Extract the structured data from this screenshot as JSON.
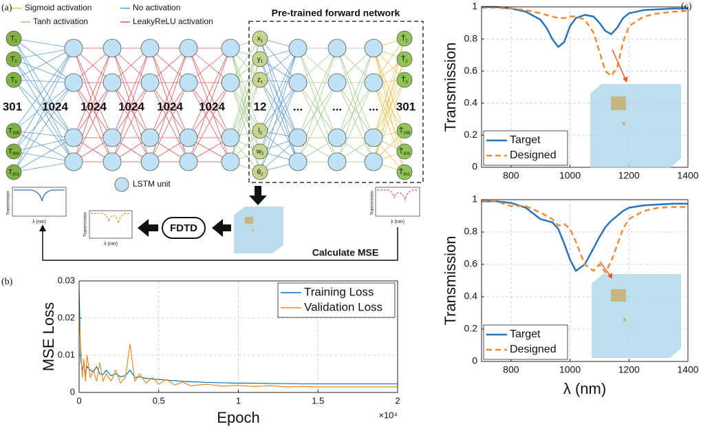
{
  "diagram": {
    "panel_label": "(a)",
    "legend": [
      {
        "name": "Sigmoid activation",
        "color": "#e9c14a"
      },
      {
        "name": "No activation",
        "color": "#5b9bd5"
      },
      {
        "name": "Tanh activation",
        "color": "#9fcb84"
      },
      {
        "name": "LeakyReLU activation",
        "color": "#e0535a"
      }
    ],
    "forward_title": "Pre-trained forward network",
    "layer_sizes": [
      "301",
      "1024",
      "1024",
      "1024",
      "1024",
      "1024",
      "12",
      "...",
      "...",
      "...",
      "301"
    ],
    "input_nodes": [
      {
        "main": "T",
        "sub": "1"
      },
      {
        "main": "T",
        "sub": "2"
      },
      {
        "main": "T",
        "sub": "3"
      },
      {
        "main": "T",
        "sub": "299"
      },
      {
        "main": "T",
        "sub": "300"
      },
      {
        "main": "T",
        "sub": "301"
      }
    ],
    "param_nodes": [
      {
        "main": "x",
        "sub": "1"
      },
      {
        "main": "y",
        "sub": "1"
      },
      {
        "main": "z",
        "sub": "1"
      },
      {
        "main": "l",
        "sub": "2"
      },
      {
        "main": "w",
        "sub": "2"
      },
      {
        "main": "θ",
        "sub": "2"
      }
    ],
    "output_nodes": [
      {
        "main": "T̂",
        "sub": "1"
      },
      {
        "main": "T̂",
        "sub": "2"
      },
      {
        "main": "T̂",
        "sub": "3"
      },
      {
        "main": "T̂",
        "sub": "299"
      },
      {
        "main": "T̂",
        "sub": "300"
      },
      {
        "main": "T̂",
        "sub": "301"
      }
    ],
    "lstm_label": "LSTM unit",
    "fdtd": "FDTD",
    "mse": "Calculate MSE",
    "thumb_axis": {
      "y": "Transmission",
      "x": "λ (nm)"
    }
  },
  "chart_data": [
    {
      "type": "line",
      "panel_label": "(b)",
      "xlabel": "Epoch",
      "ylabel": "MSE Loss",
      "x_multiplier": "×10⁴",
      "x": [
        0,
        100,
        200,
        300,
        400,
        500,
        700,
        900,
        1100,
        1300,
        1500,
        1700,
        2000,
        2300,
        2600,
        2900,
        3200,
        3500,
        3800,
        4200,
        4600,
        5000,
        5500,
        6000,
        6500,
        7000,
        8000,
        9000,
        10000,
        11000,
        12000,
        13000,
        14000,
        15000,
        16000,
        17000,
        18000,
        19000,
        20000
      ],
      "series": [
        {
          "name": "Training Loss",
          "color": "#0072bd",
          "style": "solid",
          "values": [
            0.028,
            0.009,
            0.006,
            0.008,
            0.005,
            0.007,
            0.006,
            0.0055,
            0.007,
            0.005,
            0.0048,
            0.006,
            0.0045,
            0.005,
            0.0042,
            0.0045,
            0.006,
            0.004,
            0.0042,
            0.0038,
            0.0036,
            0.0035,
            0.0033,
            0.0032,
            0.003,
            0.0029,
            0.0027,
            0.0026,
            0.0025,
            0.0025,
            0.0024,
            0.0024,
            0.0023,
            0.0023,
            0.0023,
            0.0023,
            0.0023,
            0.0023,
            0.0023
          ]
        },
        {
          "name": "Validation Loss",
          "color": "#ec8a1f",
          "style": "solid",
          "values": [
            0.021,
            0.012,
            0.004,
            0.009,
            0.003,
            0.01,
            0.004,
            0.006,
            0.003,
            0.008,
            0.003,
            0.005,
            0.003,
            0.006,
            0.0025,
            0.004,
            0.013,
            0.003,
            0.005,
            0.0025,
            0.004,
            0.0022,
            0.0035,
            0.002,
            0.0028,
            0.0018,
            0.0022,
            0.0017,
            0.0019,
            0.0016,
            0.0018,
            0.0015,
            0.0016,
            0.0015,
            0.0015,
            0.0015,
            0.0015,
            0.0015,
            0.0015
          ]
        }
      ],
      "xlim": [
        0,
        20000
      ],
      "xticks": [
        0,
        {
          "value": 5000,
          "label": "0.5"
        },
        {
          "value": 10000,
          "label": "1"
        },
        {
          "value": 15000,
          "label": "1.5"
        },
        {
          "value": 20000,
          "label": "2"
        }
      ],
      "ylim": [
        0,
        0.03
      ],
      "yticks": [
        0,
        0.01,
        0.02,
        0.03
      ],
      "grid": true,
      "legend": "upper right"
    },
    {
      "type": "line",
      "panel_label": "(c)",
      "ylabel": "Transmission",
      "x": [
        700,
        750,
        800,
        850,
        900,
        920,
        940,
        960,
        980,
        1000,
        1020,
        1050,
        1080,
        1100,
        1120,
        1140,
        1160,
        1180,
        1200,
        1250,
        1300,
        1350,
        1400
      ],
      "series": [
        {
          "name": "Target",
          "color": "#2a72b5",
          "style": "solid",
          "values": [
            1,
            1,
            0.99,
            0.97,
            0.92,
            0.87,
            0.8,
            0.75,
            0.78,
            0.88,
            0.93,
            0.95,
            0.94,
            0.9,
            0.85,
            0.83,
            0.87,
            0.93,
            0.96,
            0.98,
            0.985,
            0.99,
            0.99
          ]
        },
        {
          "name": "Designed",
          "color": "#ef8a32",
          "style": "dashed",
          "values": [
            0.995,
            0.995,
            0.99,
            0.98,
            0.96,
            0.95,
            0.94,
            0.93,
            0.93,
            0.94,
            0.94,
            0.92,
            0.84,
            0.72,
            0.6,
            0.57,
            0.62,
            0.78,
            0.88,
            0.94,
            0.96,
            0.97,
            0.975
          ]
        }
      ],
      "xlim": [
        700,
        1400
      ],
      "xticks": [
        800,
        1000,
        1200,
        1400
      ],
      "ylim": [
        0,
        1
      ],
      "yticks": [
        0,
        0.2,
        0.4,
        0.6,
        0.8,
        1
      ],
      "grid": true,
      "legend": "lower left"
    },
    {
      "type": "line",
      "ylabel": "Transmission",
      "xlabel": "λ (nm)",
      "x": [
        700,
        750,
        800,
        850,
        900,
        920,
        940,
        960,
        980,
        1000,
        1020,
        1050,
        1080,
        1100,
        1120,
        1140,
        1160,
        1180,
        1200,
        1250,
        1300,
        1350,
        1400
      ],
      "series": [
        {
          "name": "Target",
          "color": "#2a72b5",
          "style": "solid",
          "values": [
            0.99,
            0.99,
            0.98,
            0.95,
            0.88,
            0.87,
            0.86,
            0.82,
            0.73,
            0.63,
            0.56,
            0.6,
            0.7,
            0.77,
            0.83,
            0.87,
            0.9,
            0.93,
            0.95,
            0.965,
            0.97,
            0.975,
            0.975
          ]
        },
        {
          "name": "Designed",
          "color": "#ef8a32",
          "style": "dashed",
          "values": [
            0.995,
            0.99,
            0.96,
            0.96,
            0.92,
            0.9,
            0.88,
            0.84,
            0.85,
            0.82,
            0.74,
            0.6,
            0.56,
            0.6,
            0.55,
            0.62,
            0.72,
            0.82,
            0.88,
            0.93,
            0.95,
            0.955,
            0.955
          ]
        }
      ],
      "xlim": [
        700,
        1400
      ],
      "xticks": [
        800,
        1000,
        1200,
        1400
      ],
      "ylim": [
        0,
        1
      ],
      "yticks": [
        0,
        0.2,
        0.4,
        0.6,
        0.8,
        1
      ],
      "grid": true,
      "legend": "lower left"
    }
  ]
}
